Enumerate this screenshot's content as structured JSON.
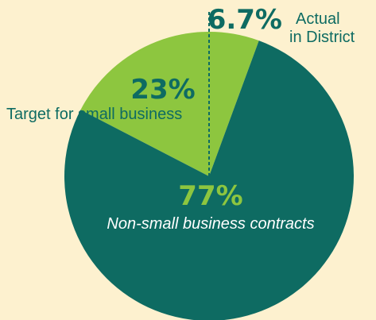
{
  "colors": {
    "background": "#fdf1cf",
    "small_business": "#8dc63f",
    "non_small_business": "#0e6b62",
    "dashed_line": "#0e6b62",
    "pct_on_light": "#0e6b62",
    "pct_on_dark": "#8dc63f",
    "label_on_light": "#0e6b62",
    "label_on_dark": "#ffffff"
  },
  "chart_data": {
    "type": "pie",
    "title": "",
    "slices": [
      {
        "key": "small_business",
        "value": 23,
        "pct_label": "23%",
        "label": "Target for small business"
      },
      {
        "key": "non_small_business",
        "value": 77,
        "pct_label": "77%",
        "label": "Non-small business contracts"
      }
    ],
    "annotation": {
      "value": 6.7,
      "pct_label": "6.7%",
      "label_line1": "Actual",
      "label_line2": "in District",
      "style": "dashed-line"
    }
  }
}
